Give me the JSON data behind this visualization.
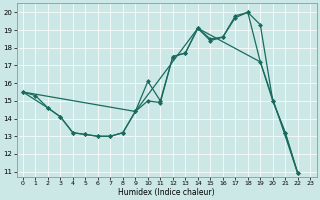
{
  "xlabel": "Humidex (Indice chaleur)",
  "bg_color": "#cce8e6",
  "line_color": "#1a6b5e",
  "xlim": [
    -0.5,
    23.5
  ],
  "ylim": [
    10.7,
    20.5
  ],
  "yticks": [
    11,
    12,
    13,
    14,
    15,
    16,
    17,
    18,
    19,
    20
  ],
  "xticks": [
    0,
    1,
    2,
    3,
    4,
    5,
    6,
    7,
    8,
    9,
    10,
    11,
    12,
    13,
    14,
    15,
    16,
    17,
    18,
    19,
    20,
    21,
    22,
    23
  ],
  "line1_x": [
    0,
    1,
    2,
    3,
    4,
    5,
    6,
    7,
    8,
    9,
    10,
    11,
    12,
    13,
    14,
    15,
    16,
    17,
    18,
    19,
    20,
    21,
    22
  ],
  "line1_y": [
    15.5,
    15.3,
    14.6,
    14.1,
    13.2,
    13.1,
    13.0,
    13.0,
    13.2,
    14.4,
    15.0,
    14.9,
    17.5,
    17.7,
    19.1,
    18.4,
    18.6,
    19.8,
    20.0,
    19.3,
    15.0,
    13.2,
    10.9
  ],
  "line2_x": [
    0,
    2,
    3,
    4,
    5,
    6,
    7,
    8,
    9,
    10,
    11,
    12,
    13,
    14,
    15,
    16,
    17,
    18,
    19,
    20,
    21,
    22
  ],
  "line2_y": [
    15.5,
    14.6,
    14.1,
    13.2,
    13.1,
    13.0,
    13.0,
    13.2,
    14.4,
    16.1,
    15.0,
    17.5,
    17.7,
    19.1,
    18.5,
    18.6,
    19.7,
    20.0,
    17.2,
    15.0,
    13.2,
    10.9
  ],
  "line3_x": [
    0,
    9,
    14,
    19,
    22
  ],
  "line3_y": [
    15.5,
    14.4,
    19.1,
    17.2,
    10.9
  ]
}
